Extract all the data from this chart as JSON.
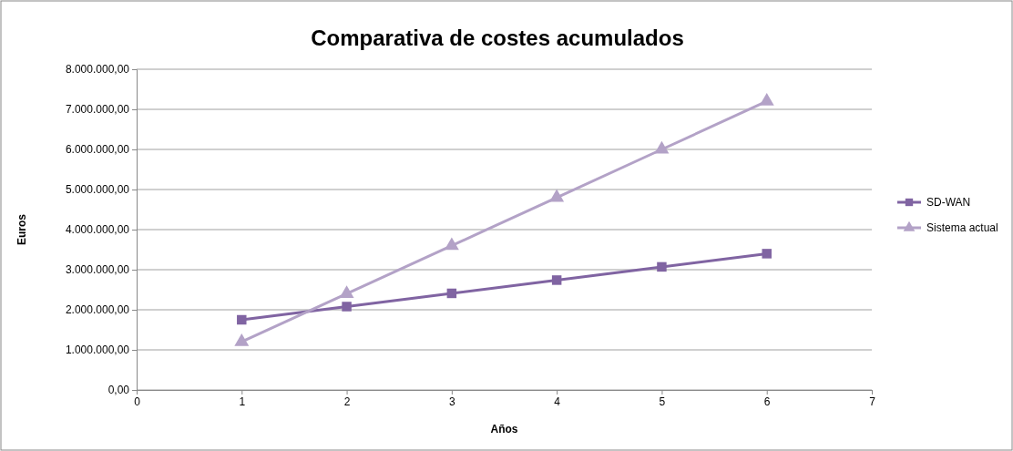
{
  "chart_data": {
    "type": "line",
    "title": "Comparativa de costes acumulados",
    "xlabel": "Años",
    "ylabel": "Euros",
    "x": [
      1,
      2,
      3,
      4,
      5,
      6
    ],
    "series": [
      {
        "name": "SD-WAN",
        "color": "#8064a2",
        "marker": "square",
        "values": [
          1750000,
          2080000,
          2410000,
          2740000,
          3070000,
          3400000
        ]
      },
      {
        "name": "Sistema actual",
        "color": "#b3a2c7",
        "marker": "triangle",
        "values": [
          1200000,
          2400000,
          3600000,
          4800000,
          6000000,
          7200000
        ]
      }
    ],
    "xlim": [
      0,
      7
    ],
    "xticks": [
      0,
      1,
      2,
      3,
      4,
      5,
      6,
      7
    ],
    "ylim": [
      0,
      8000000
    ],
    "yticks": [
      {
        "value": 0,
        "label": "0,00"
      },
      {
        "value": 1000000,
        "label": "1.000.000,00"
      },
      {
        "value": 2000000,
        "label": "2.000.000,00"
      },
      {
        "value": 3000000,
        "label": "3.000.000,00"
      },
      {
        "value": 4000000,
        "label": "4.000.000,00"
      },
      {
        "value": 5000000,
        "label": "5.000.000,00"
      },
      {
        "value": 6000000,
        "label": "6.000.000,00"
      },
      {
        "value": 7000000,
        "label": "7.000.000,00"
      },
      {
        "value": 8000000,
        "label": "8.000.000,00"
      }
    ],
    "grid": "y",
    "legend": "right"
  }
}
